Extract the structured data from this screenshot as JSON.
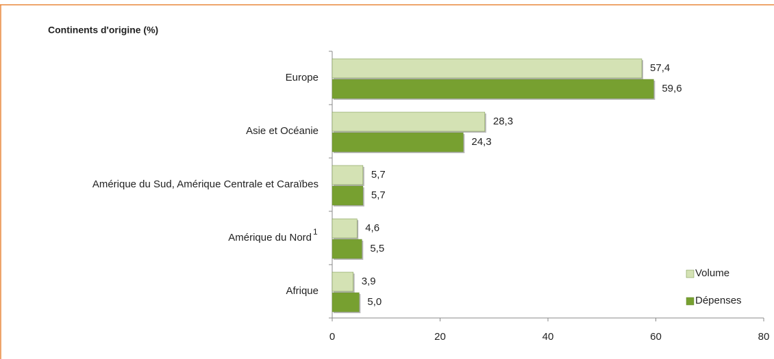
{
  "chart_data": {
    "type": "bar",
    "orientation": "horizontal",
    "title": "Continents d'origine (%)",
    "categories": [
      "Europe",
      "Asie et Océanie",
      "Amérique du Sud, Amérique Centrale et Caraïbes",
      "Amérique du Nord",
      "Afrique"
    ],
    "category_superscripts": [
      null,
      null,
      null,
      "1",
      null
    ],
    "series": [
      {
        "name": "Volume",
        "color": "#d4e2b4",
        "values": [
          57.4,
          28.3,
          5.7,
          4.6,
          3.9
        ],
        "value_labels": [
          "57,4",
          "28,3",
          "5,7",
          "4,6",
          "3,9"
        ]
      },
      {
        "name": "Dépenses",
        "color": "#77a030",
        "values": [
          59.6,
          24.3,
          5.7,
          5.5,
          5.0
        ],
        "value_labels": [
          "59,6",
          "24,3",
          "5,7",
          "5,5",
          "5,0"
        ]
      }
    ],
    "xlim": [
      0,
      80
    ],
    "xticks": [
      0,
      20,
      40,
      60,
      80
    ],
    "legend": "lower right",
    "grid": false
  }
}
